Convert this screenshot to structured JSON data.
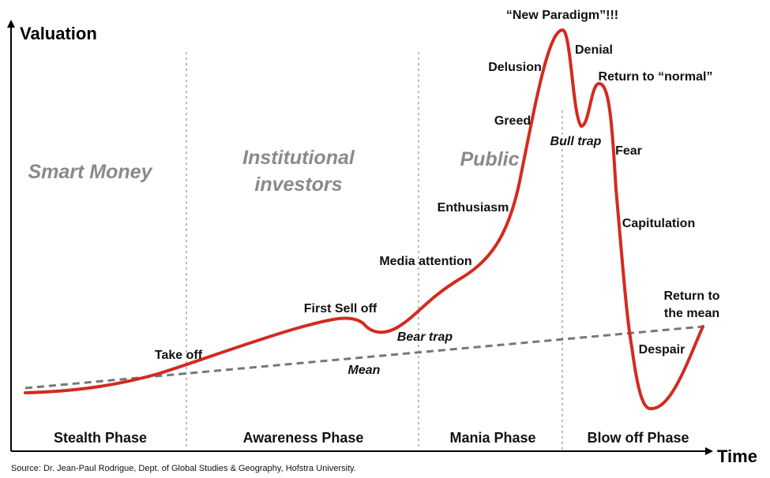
{
  "axes": {
    "y_title": "Valuation",
    "x_title": "Time"
  },
  "groups": {
    "smart_money": "Smart Money",
    "institutional_line1": "Institutional",
    "institutional_line2": "investors",
    "public": "Public"
  },
  "phases": {
    "stealth": "Stealth Phase",
    "awareness": "Awareness Phase",
    "mania": "Mania Phase",
    "blow_off": "Blow off Phase"
  },
  "stages": {
    "take_off": "Take off",
    "first_sell_off": "First Sell off",
    "bear_trap": "Bear trap",
    "media_attention": "Media attention",
    "enthusiasm": "Enthusiasm",
    "greed": "Greed",
    "delusion": "Delusion",
    "new_paradigm": "“New Paradigm”!!!",
    "denial": "Denial",
    "bull_trap": "Bull trap",
    "return_to_normal": "Return to “normal”",
    "fear": "Fear",
    "capitulation": "Capitulation",
    "despair": "Despair",
    "return_to_mean_line1": "Return to",
    "return_to_mean_line2": "the mean"
  },
  "mean_label": "Mean",
  "source": "Source: Dr. Jean-Paul Rodrigue, Dept. of Global Studies & Geography, Hofstra University.",
  "colors": {
    "curve": "#d42a1e",
    "mean_line": "#777777",
    "divider": "#bbbbbb",
    "axis": "#000000"
  }
}
